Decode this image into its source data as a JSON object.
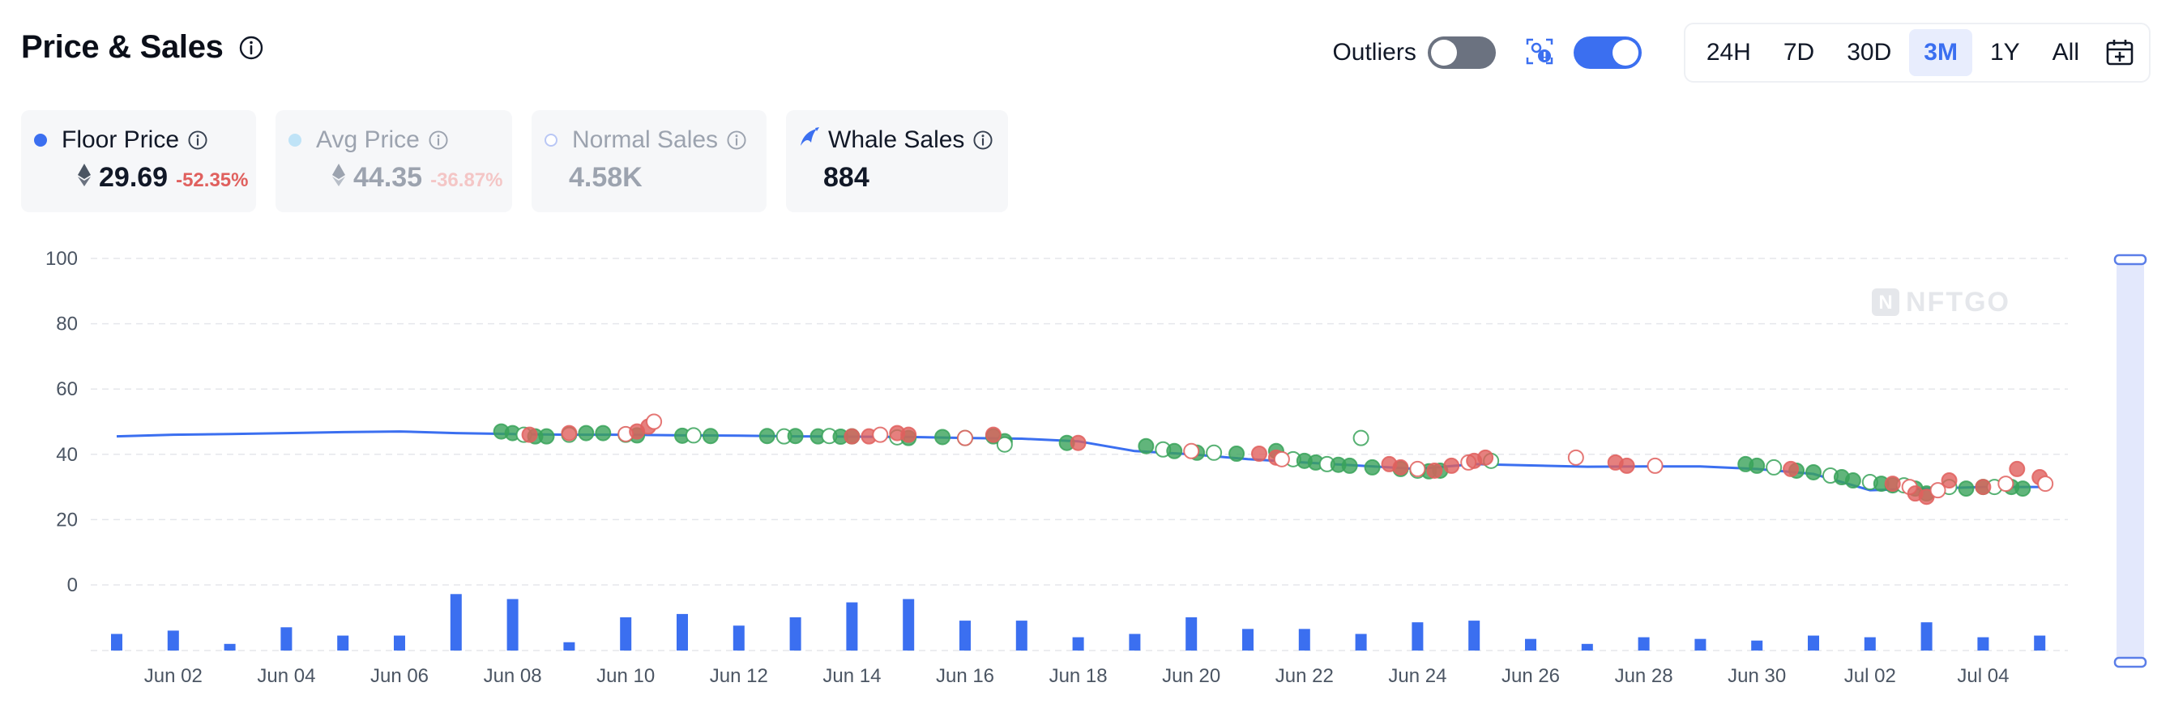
{
  "header": {
    "title": "Price & Sales"
  },
  "controls": {
    "outliers_label": "Outliers",
    "outliers_on": false,
    "scan_on": true,
    "ranges": [
      "24H",
      "7D",
      "30D",
      "3M",
      "1Y",
      "All"
    ],
    "active_range": "3M"
  },
  "cards": [
    {
      "label": "Floor Price",
      "value": "29.69",
      "change": "-52.35%",
      "dot_color": "#3b6ff0"
    },
    {
      "label": "Avg Price",
      "value": "44.35",
      "change": "-36.87%",
      "dot_color": "#a5d8f3"
    },
    {
      "label": "Normal Sales",
      "value": "4.58K"
    },
    {
      "label": "Whale Sales",
      "value": "884"
    }
  ],
  "colors": {
    "accent": "#3b6ff0",
    "up": "#3aa35a",
    "down": "#e0605e",
    "grid": "#e5e7eb"
  },
  "watermark": "NFTGO",
  "chart_data": {
    "type": "line",
    "y_ticks": [
      "100",
      "80",
      "60",
      "40",
      "20",
      "0"
    ],
    "ylim": [
      0,
      100
    ],
    "x_ticks": [
      "Jun 02",
      "Jun 04",
      "Jun 06",
      "Jun 08",
      "Jun 10",
      "Jun 12",
      "Jun 14",
      "Jun 16",
      "Jun 18",
      "Jun 20",
      "Jun 22",
      "Jun 24",
      "Jun 26",
      "Jun 28",
      "Jun 30",
      "Jul 02",
      "Jul 04"
    ],
    "x_tick_day": [
      2,
      4,
      6,
      8,
      10,
      12,
      14,
      16,
      18,
      20,
      22,
      24,
      26,
      28,
      30,
      32,
      34
    ],
    "floor_price_line": [
      [
        1,
        45.5
      ],
      [
        2,
        46
      ],
      [
        3,
        46.2
      ],
      [
        4,
        46.5
      ],
      [
        5,
        46.8
      ],
      [
        6,
        47
      ],
      [
        7,
        46.5
      ],
      [
        8,
        46.2
      ],
      [
        9,
        46
      ],
      [
        10,
        46
      ],
      [
        11,
        45.8
      ],
      [
        12,
        45.7
      ],
      [
        13,
        45.5
      ],
      [
        14,
        45.4
      ],
      [
        15,
        45.3
      ],
      [
        16,
        45
      ],
      [
        17,
        44.8
      ],
      [
        18,
        44
      ],
      [
        19,
        41
      ],
      [
        20,
        40
      ],
      [
        21,
        38.5
      ],
      [
        22,
        37.5
      ],
      [
        23,
        36.5
      ],
      [
        24,
        35.5
      ],
      [
        25,
        37
      ],
      [
        26,
        36.6
      ],
      [
        27,
        36.2
      ],
      [
        28,
        36.3
      ],
      [
        29,
        36.3
      ],
      [
        30,
        35.5
      ],
      [
        31,
        34
      ],
      [
        32,
        29
      ],
      [
        33,
        29.5
      ],
      [
        34,
        30
      ],
      [
        35,
        30
      ]
    ],
    "sales_up": [
      [
        7.8,
        47
      ],
      [
        8,
        46.5
      ],
      [
        8.2,
        46
      ],
      [
        8.4,
        45.5
      ],
      [
        8.6,
        45.5
      ],
      [
        9,
        46
      ],
      [
        9.3,
        46.5
      ],
      [
        9.6,
        46.5
      ],
      [
        10,
        46
      ],
      [
        10.2,
        45.8
      ],
      [
        11,
        45.7
      ],
      [
        11.2,
        45.8
      ],
      [
        11.5,
        45.6
      ],
      [
        12.5,
        45.6
      ],
      [
        12.8,
        45.5
      ],
      [
        13,
        45.6
      ],
      [
        13.4,
        45.5
      ],
      [
        13.6,
        45.6
      ],
      [
        13.8,
        45.4
      ],
      [
        14,
        45.5
      ],
      [
        14.8,
        45.2
      ],
      [
        15,
        45
      ],
      [
        15.6,
        45.3
      ],
      [
        16,
        45
      ],
      [
        16.5,
        45.5
      ],
      [
        16.7,
        44
      ],
      [
        16.7,
        43
      ],
      [
        17.8,
        43.5
      ],
      [
        19.2,
        42.5
      ],
      [
        19.5,
        41.5
      ],
      [
        19.7,
        41
      ],
      [
        20.1,
        40.5
      ],
      [
        20.4,
        40.5
      ],
      [
        20.8,
        40.2
      ],
      [
        21.5,
        41
      ],
      [
        21.8,
        38.5
      ],
      [
        22,
        38
      ],
      [
        22.2,
        37.5
      ],
      [
        22.4,
        37
      ],
      [
        22.6,
        36.8
      ],
      [
        22.8,
        36.5
      ],
      [
        23,
        45
      ],
      [
        23.2,
        36
      ],
      [
        23.7,
        35.5
      ],
      [
        24,
        35
      ],
      [
        24.2,
        34.8
      ],
      [
        24.4,
        35
      ],
      [
        25.3,
        38
      ],
      [
        29.8,
        37
      ],
      [
        30,
        36.5
      ],
      [
        30.3,
        36
      ],
      [
        30.7,
        35
      ],
      [
        31,
        34.5
      ],
      [
        31.3,
        33.5
      ],
      [
        31.5,
        33
      ],
      [
        31.7,
        32
      ],
      [
        32,
        31.5
      ],
      [
        32.2,
        31
      ],
      [
        32.4,
        30.5
      ],
      [
        32.6,
        30.5
      ],
      [
        32.8,
        29.5
      ],
      [
        33,
        28
      ],
      [
        33.4,
        30
      ],
      [
        33.7,
        29.5
      ],
      [
        34,
        30
      ],
      [
        34.2,
        30
      ],
      [
        34.5,
        30
      ],
      [
        34.7,
        29.5
      ]
    ],
    "sales_down": [
      [
        8.3,
        46
      ],
      [
        9,
        46.5
      ],
      [
        10,
        46.2
      ],
      [
        10.2,
        47
      ],
      [
        10.4,
        48.5
      ],
      [
        10.5,
        50
      ],
      [
        14,
        45.5
      ],
      [
        14.3,
        45.5
      ],
      [
        14.5,
        46
      ],
      [
        14.8,
        46.5
      ],
      [
        15,
        46
      ],
      [
        16,
        45
      ],
      [
        16.5,
        46
      ],
      [
        18,
        43.5
      ],
      [
        20,
        41
      ],
      [
        21.2,
        40.2
      ],
      [
        21.5,
        39
      ],
      [
        21.6,
        38.5
      ],
      [
        23.5,
        37
      ],
      [
        23.7,
        36
      ],
      [
        24,
        35.5
      ],
      [
        24.3,
        35
      ],
      [
        24.6,
        36.5
      ],
      [
        24.9,
        37.5
      ],
      [
        25,
        38
      ],
      [
        25.2,
        39
      ],
      [
        26.8,
        39
      ],
      [
        27.5,
        37.5
      ],
      [
        27.7,
        36.5
      ],
      [
        28.2,
        36.5
      ],
      [
        30.6,
        35.5
      ],
      [
        32.4,
        31
      ],
      [
        32.7,
        30
      ],
      [
        32.8,
        28
      ],
      [
        33,
        27
      ],
      [
        33.2,
        29
      ],
      [
        33.4,
        32
      ],
      [
        34,
        30
      ],
      [
        34.4,
        31
      ],
      [
        34.6,
        35.5
      ],
      [
        35,
        33
      ],
      [
        35.1,
        31
      ]
    ],
    "whale_volume": [
      [
        1,
        5
      ],
      [
        2,
        6
      ],
      [
        3,
        2
      ],
      [
        4,
        7
      ],
      [
        5,
        4.5
      ],
      [
        6,
        4.5
      ],
      [
        7,
        17
      ],
      [
        8,
        15.5
      ],
      [
        9,
        2.5
      ],
      [
        10,
        10
      ],
      [
        11,
        11
      ],
      [
        12,
        7.5
      ],
      [
        13,
        10
      ],
      [
        14,
        14.5
      ],
      [
        15,
        15.5
      ],
      [
        16,
        9
      ],
      [
        17,
        9
      ],
      [
        18,
        4
      ],
      [
        19,
        5
      ],
      [
        20,
        10
      ],
      [
        21,
        6.5
      ],
      [
        22,
        6.5
      ],
      [
        23,
        5
      ],
      [
        24,
        8.5
      ],
      [
        25,
        9
      ],
      [
        26,
        3.5
      ],
      [
        27,
        2
      ],
      [
        28,
        4
      ],
      [
        29,
        3.5
      ],
      [
        30,
        3
      ],
      [
        31,
        4.5
      ],
      [
        32,
        4
      ],
      [
        33,
        8.5
      ],
      [
        34,
        4
      ],
      [
        35,
        4.5
      ]
    ]
  }
}
